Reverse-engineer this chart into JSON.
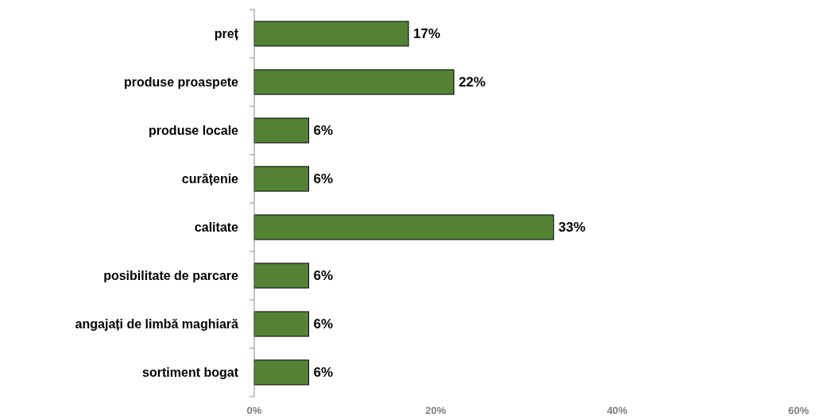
{
  "chart_data": {
    "type": "bar",
    "orientation": "horizontal",
    "categories": [
      "preț",
      "produse proaspete",
      "produse locale",
      "curățenie",
      "calitate",
      "posibilitate de parcare",
      "angajați de limbă maghiară",
      "sortiment bogat"
    ],
    "values": [
      17,
      22,
      6,
      6,
      33,
      6,
      6,
      6
    ],
    "value_labels": [
      "17%",
      "22%",
      "6%",
      "6%",
      "33%",
      "6%",
      "6%",
      "6%"
    ],
    "color": "#548235",
    "xlim": [
      0,
      60
    ],
    "xticks": [
      {
        "value": 0,
        "label": "0%"
      },
      {
        "value": 20,
        "label": "20%"
      },
      {
        "value": 40,
        "label": "40%"
      },
      {
        "value": 60,
        "label": "60%"
      }
    ],
    "grid": false
  }
}
